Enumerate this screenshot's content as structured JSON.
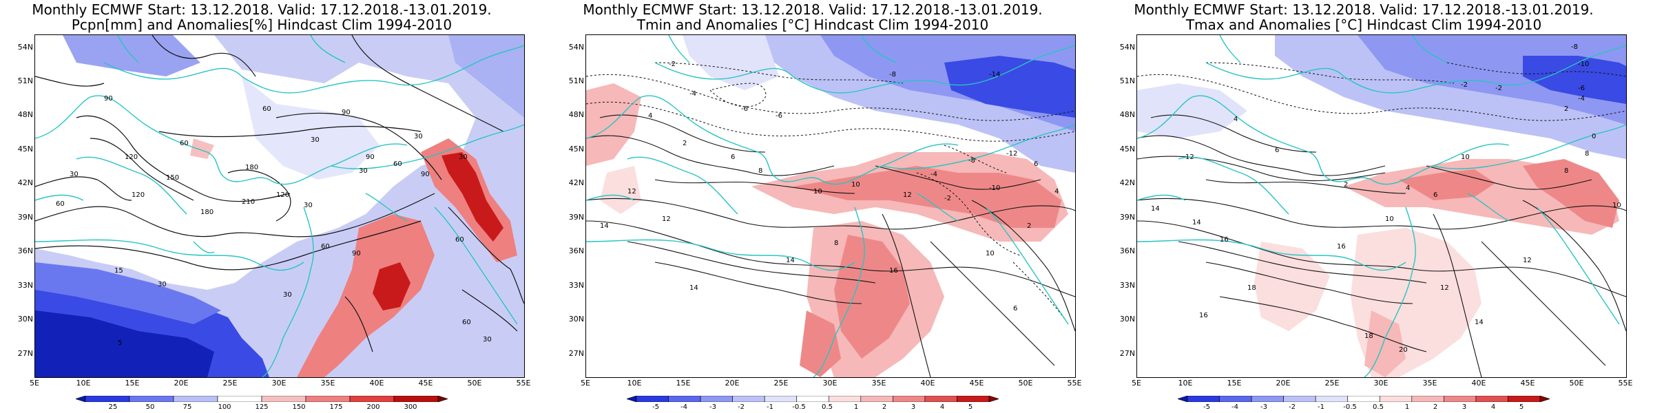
{
  "panels": [
    {
      "title_line1": "Monthly ECMWF Start: 13.12.2018. Valid: 17.12.2018.-13.01.2019.",
      "title_line2": "Pcpn[mm] and Anomalies[%] Hindcast Clim 1994-2010",
      "variable": "precipitation",
      "lat_labels": [
        "54N",
        "51N",
        "48N",
        "45N",
        "42N",
        "39N",
        "36N",
        "33N",
        "30N",
        "27N"
      ],
      "lon_labels": [
        "5E",
        "10E",
        "15E",
        "20E",
        "25E",
        "30E",
        "35E",
        "40E",
        "45E",
        "50E",
        "55E"
      ],
      "colorbar": {
        "labels": [
          "25",
          "50",
          "75",
          "100",
          "125",
          "150",
          "175",
          "200",
          "300"
        ],
        "colors": [
          "#0a1aa8",
          "#2a3ae0",
          "#6a78f0",
          "#b9c0f5",
          "#ffffff",
          "#f6c0c0",
          "#ee8080",
          "#e04040",
          "#b81010",
          "#7a0000"
        ]
      },
      "contour_labels": [
        "30",
        "60",
        "90",
        "120",
        "150",
        "180",
        "210",
        "60",
        "30",
        "90",
        "120",
        "60",
        "30",
        "90",
        "120",
        "180",
        "30",
        "60",
        "90",
        "30",
        "60",
        "15",
        "30",
        "30",
        "60",
        "5",
        "60",
        "30",
        "90",
        "30"
      ]
    },
    {
      "title_line1": "Monthly ECMWF Start: 13.12.2018. Valid: 17.12.2018.-13.01.2019.",
      "title_line2": "Tmin and Anomalies [°C] Hindcast Clim 1994-2010",
      "variable": "tmin",
      "lat_labels": [
        "54N",
        "51N",
        "48N",
        "45N",
        "42N",
        "39N",
        "36N",
        "33N",
        "30N",
        "27N"
      ],
      "lon_labels": [
        "5E",
        "10E",
        "15E",
        "20E",
        "25E",
        "30E",
        "35E",
        "40E",
        "45E",
        "50E",
        "55E"
      ],
      "colorbar": {
        "labels": [
          "-5",
          "-4",
          "-3",
          "-2",
          "-1",
          "-0.5",
          "0.5",
          "1",
          "2",
          "3",
          "4",
          "5"
        ],
        "colors": [
          "#0a1aa8",
          "#2a3ae0",
          "#5a68ee",
          "#8e98f2",
          "#bcc2f6",
          "#e0e3fa",
          "#ffffff",
          "#fbdede",
          "#f6b8b8",
          "#ee8888",
          "#e05050",
          "#c81a1a",
          "#8a0000"
        ]
      },
      "contour_labels": [
        "-14",
        "-2",
        "-4",
        "-6",
        "-6",
        "-8",
        "4",
        "2",
        "6",
        "8",
        "10",
        "12",
        "14",
        "16",
        "10",
        "12",
        "-4",
        "-2",
        "-8",
        "-10",
        "-12",
        "6",
        "4",
        "2",
        "12",
        "14",
        "10",
        "6",
        "14",
        "8"
      ]
    },
    {
      "title_line1": "Monthly ECMWF Start: 13.12.2018. Valid: 17.12.2018.-13.01.2019.",
      "title_line2": "Tmax and Anomalies [°C] Hindcast Clim 1994-2010",
      "variable": "tmax",
      "lat_labels": [
        "54N",
        "51N",
        "48N",
        "45N",
        "42N",
        "39N",
        "36N",
        "33N",
        "30N",
        "27N"
      ],
      "lon_labels": [
        "5E",
        "10E",
        "15E",
        "20E",
        "25E",
        "30E",
        "35E",
        "40E",
        "45E",
        "50E",
        "55E"
      ],
      "colorbar": {
        "labels": [
          "-5",
          "-4",
          "-3",
          "-2",
          "-1",
          "-0.5",
          "0.5",
          "1",
          "2",
          "3",
          "4",
          "5"
        ],
        "colors": [
          "#0a1aa8",
          "#2a3ae0",
          "#5a68ee",
          "#8e98f2",
          "#bcc2f6",
          "#e0e3fa",
          "#ffffff",
          "#fbdede",
          "#f6b8b8",
          "#ee8888",
          "#e05050",
          "#c81a1a",
          "#8a0000"
        ]
      },
      "contour_labels": [
        "-8",
        "-10",
        "-6",
        "-4",
        "-2",
        "-2",
        "0",
        "2",
        "4",
        "6",
        "8",
        "10",
        "12",
        "14",
        "16",
        "18",
        "20",
        "2",
        "4",
        "6",
        "8",
        "10",
        "14",
        "16",
        "12",
        "14",
        "18",
        "16",
        "10",
        "12"
      ]
    }
  ]
}
